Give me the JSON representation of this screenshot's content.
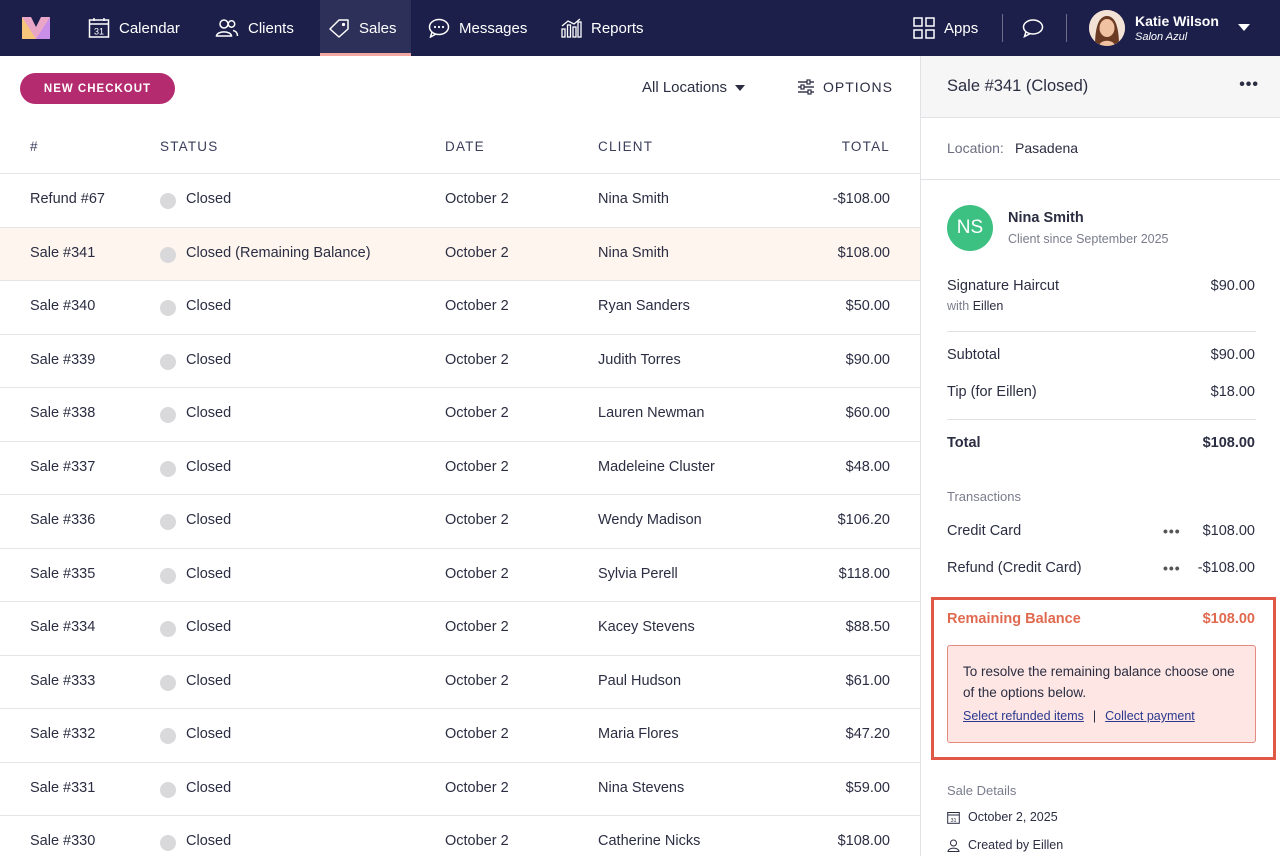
{
  "nav": {
    "items": [
      {
        "label": "Calendar",
        "icon": "calendar-icon"
      },
      {
        "label": "Clients",
        "icon": "users-icon"
      },
      {
        "label": "Sales",
        "icon": "tag-icon",
        "active": true
      },
      {
        "label": "Messages",
        "icon": "chat-bubble-icon"
      },
      {
        "label": "Reports",
        "icon": "bar-chart-icon"
      }
    ],
    "apps_label": "Apps",
    "calendar_icon_day": "31"
  },
  "user": {
    "name": "Katie Wilson",
    "salon": "Salon Azul"
  },
  "toolbar": {
    "new_checkout": "NEW CHECKOUT",
    "location_filter": "All Locations",
    "options": "OPTIONS"
  },
  "table": {
    "headers": {
      "num": "#",
      "status": "STATUS",
      "date": "DATE",
      "client": "CLIENT",
      "total": "TOTAL"
    },
    "rows": [
      {
        "num": "Refund #67",
        "status": "Closed",
        "date": "October 2",
        "client": "Nina Smith",
        "total": "-$108.00"
      },
      {
        "num": "Sale #341",
        "status": "Closed (Remaining Balance)",
        "date": "October 2",
        "client": "Nina Smith",
        "total": "$108.00",
        "selected": true
      },
      {
        "num": "Sale #340",
        "status": "Closed",
        "date": "October 2",
        "client": "Ryan Sanders",
        "total": "$50.00"
      },
      {
        "num": "Sale #339",
        "status": "Closed",
        "date": "October 2",
        "client": "Judith Torres",
        "total": "$90.00"
      },
      {
        "num": "Sale #338",
        "status": "Closed",
        "date": "October 2",
        "client": "Lauren Newman",
        "total": "$60.00"
      },
      {
        "num": "Sale #337",
        "status": "Closed",
        "date": "October 2",
        "client": "Madeleine Cluster",
        "total": "$48.00"
      },
      {
        "num": "Sale #336",
        "status": "Closed",
        "date": "October 2",
        "client": "Wendy Madison",
        "total": "$106.20"
      },
      {
        "num": "Sale #335",
        "status": "Closed",
        "date": "October 2",
        "client": "Sylvia Perell",
        "total": "$118.00"
      },
      {
        "num": "Sale #334",
        "status": "Closed",
        "date": "October 2",
        "client": "Kacey Stevens",
        "total": "$88.50"
      },
      {
        "num": "Sale #333",
        "status": "Closed",
        "date": "October 2",
        "client": "Paul Hudson",
        "total": "$61.00"
      },
      {
        "num": "Sale #332",
        "status": "Closed",
        "date": "October 2",
        "client": "Maria Flores",
        "total": "$47.20"
      },
      {
        "num": "Sale #331",
        "status": "Closed",
        "date": "October 2",
        "client": "Nina Stevens",
        "total": "$59.00"
      },
      {
        "num": "Sale #330",
        "status": "Closed",
        "date": "October 2",
        "client": "Catherine Nicks",
        "total": "$108.00"
      }
    ]
  },
  "detail": {
    "title": "Sale #341 (Closed)",
    "location_label": "Location:",
    "location": "Pasadena",
    "client": {
      "initials": "NS",
      "name": "Nina Smith",
      "since": "Client since September 2025"
    },
    "item": {
      "name": "Signature Haircut",
      "with_label": "with",
      "staff": "Eillen",
      "price": "$90.00"
    },
    "subtotal_label": "Subtotal",
    "subtotal": "$90.00",
    "tip_label": "Tip (for Eillen)",
    "tip": "$18.00",
    "total_label": "Total",
    "total": "$108.00",
    "transactions_label": "Transactions",
    "transactions": [
      {
        "label": "Credit Card",
        "amount": "$108.00"
      },
      {
        "label": "Refund (Credit Card)",
        "amount": "-$108.00"
      }
    ],
    "remaining": {
      "label": "Remaining Balance",
      "amount": "$108.00",
      "message": "To resolve the remaining balance choose one of the options below.",
      "link_refunded": "Select refunded items",
      "separator": "|",
      "link_collect": "Collect payment"
    },
    "sale_details_label": "Sale Details",
    "sale_date": "October 2, 2025",
    "created_by": "Created by Eillen",
    "date_icon_day": "31"
  },
  "colors": {
    "nav_bg": "#1c1f4a",
    "accent": "#b52b6f",
    "alert": "#e05846",
    "avatar_green": "#3dc182"
  }
}
